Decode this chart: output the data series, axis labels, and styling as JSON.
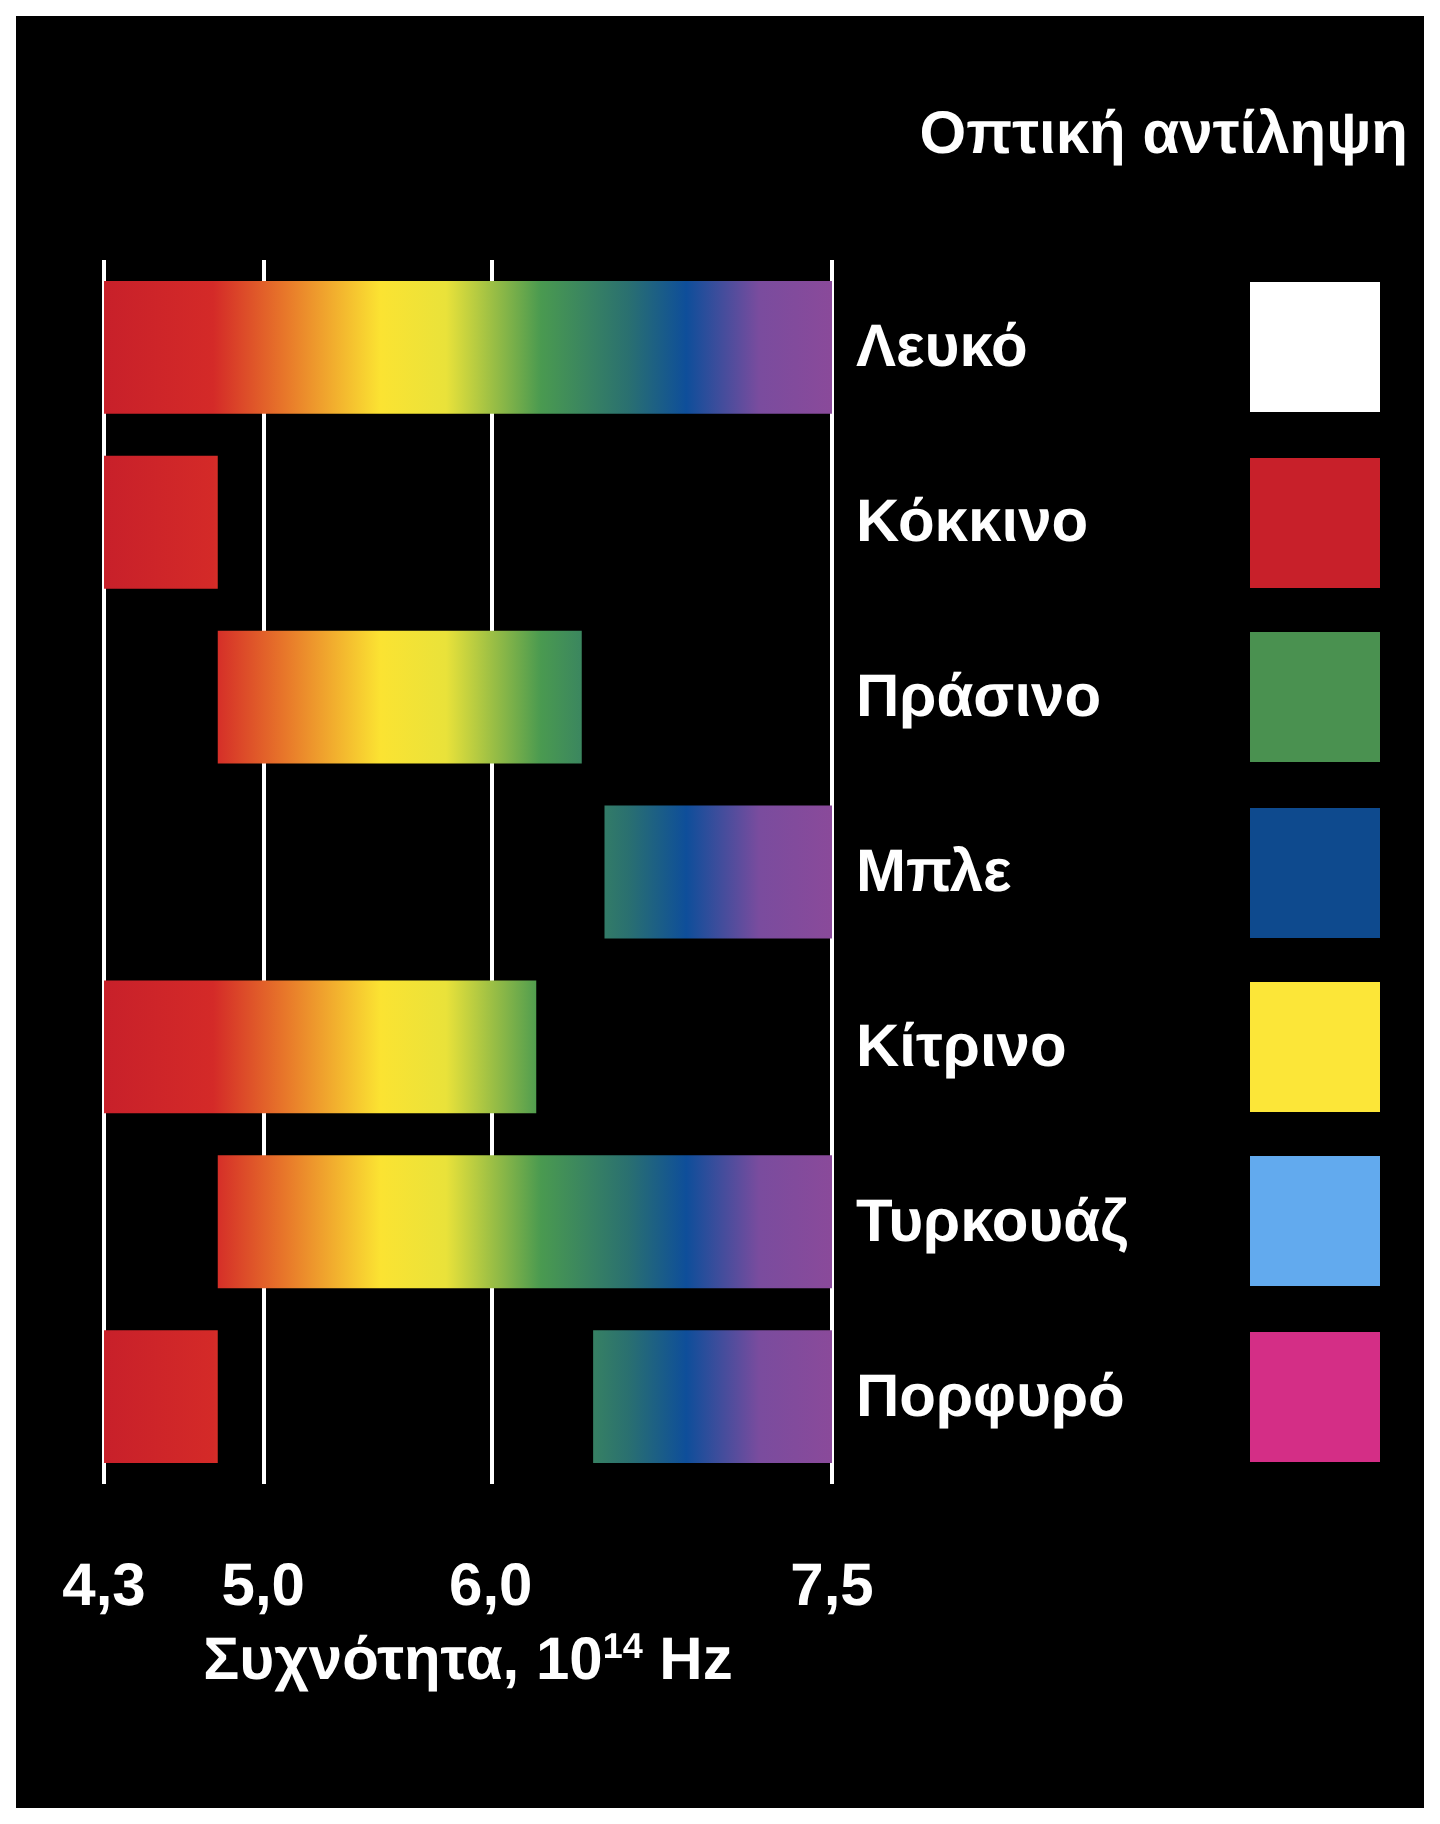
{
  "chart_data": {
    "type": "bar",
    "orientation": "horizontal",
    "ylabel": "Οπτική αντίληψη",
    "xlabel": "Συχνότητα, 10$^{14}$ Hz",
    "categories": [
      "Λευκό",
      "Κόκκινο",
      "Πράσινο",
      "Μπλε",
      "Κίτρινο",
      "Τυρκουάζ",
      "Πορφυρό"
    ],
    "colors": [
      "#ffffff",
      "#c8202a",
      "#4a9150",
      "#0e4a8e",
      "#fce638",
      "#62aaee",
      "#d42e86"
    ],
    "series": [
      {
        "base": [
          4.3,
          4.3,
          4.8,
          6.5,
          4.3,
          4.8,
          4.3
        ],
        "values": [
          3.2,
          0.5,
          1.6,
          1.0,
          1.9,
          2.7,
          0.5
        ]
      },
      {
        "base": [
          null,
          null,
          null,
          null,
          null,
          null,
          6.45
        ],
        "values": [
          null,
          null,
          null,
          null,
          null,
          null,
          1.05
        ]
      }
    ],
    "xlim": [
      4.3,
      7.5
    ],
    "xticks": [
      {
        "value": 4.3,
        "label": "4,3"
      },
      {
        "value": 5.0,
        "label": "5,0"
      },
      {
        "value": 6.0,
        "label": "6,0"
      },
      {
        "value": 7.5,
        "label": "7,5"
      }
    ],
    "grid": "x"
  }
}
